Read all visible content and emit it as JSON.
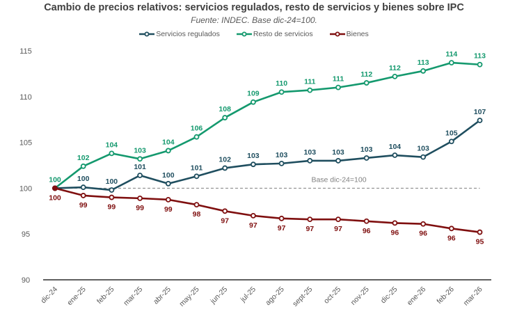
{
  "chart_data": {
    "type": "line",
    "title": "Cambio de precios relativos: servicios regulados, resto de servicios y bienes sobre IPC",
    "subtitle": "Fuente: INDEC. Base dic-24=100.",
    "xlabel": "",
    "ylabel": "",
    "ylim": [
      90,
      115
    ],
    "yticks": [
      "90",
      "95",
      "100",
      "105",
      "110",
      "115"
    ],
    "grid": false,
    "legend_position": "top",
    "categories": [
      "dic-24",
      "ene-25",
      "feb-25",
      "mar-25",
      "abr-25",
      "may-25",
      "jun-25",
      "jul-25",
      "ago-25",
      "sept-25",
      "oct-25",
      "nov-25",
      "dic-25",
      "ene-26",
      "feb-26",
      "mar-26"
    ],
    "reference_line": {
      "value": 100,
      "label": "Base dic-24=100",
      "color": "#7f7f7f"
    },
    "series": [
      {
        "name": "Servicios regulados",
        "color": "#1f4e5f",
        "values": [
          100,
          100.1,
          99.8,
          101.4,
          100.5,
          101.3,
          102.2,
          102.6,
          102.7,
          103.0,
          103.0,
          103.3,
          103.6,
          103.4,
          105.1,
          107.4
        ],
        "labels": [
          "",
          "100",
          "100",
          "101",
          "100",
          "101",
          "102",
          "103",
          "103",
          "103",
          "103",
          "103",
          "104",
          "103",
          "105",
          "107"
        ],
        "label_position": "above"
      },
      {
        "name": "Resto de servicios",
        "color": "#14996e",
        "values": [
          100,
          102.4,
          103.8,
          103.2,
          104.1,
          105.6,
          107.7,
          109.4,
          110.5,
          110.7,
          111.0,
          111.5,
          112.2,
          112.8,
          113.7,
          113.5
        ],
        "labels": [
          "100",
          "102",
          "104",
          "103",
          "104",
          "106",
          "108",
          "109",
          "110",
          "111",
          "111",
          "112",
          "112",
          "113",
          "114",
          "113"
        ],
        "label_position": "above"
      },
      {
        "name": "Bienes",
        "color": "#7f0f0f",
        "values": [
          100,
          99.2,
          99.0,
          98.9,
          98.75,
          98.2,
          97.5,
          97.0,
          96.7,
          96.6,
          96.6,
          96.4,
          96.2,
          96.1,
          95.6,
          95.2
        ],
        "labels": [
          "100",
          "99",
          "99",
          "99",
          "99",
          "98",
          "97",
          "97",
          "97",
          "97",
          "97",
          "96",
          "96",
          "96",
          "96",
          "95"
        ],
        "label_position": "below"
      }
    ]
  }
}
